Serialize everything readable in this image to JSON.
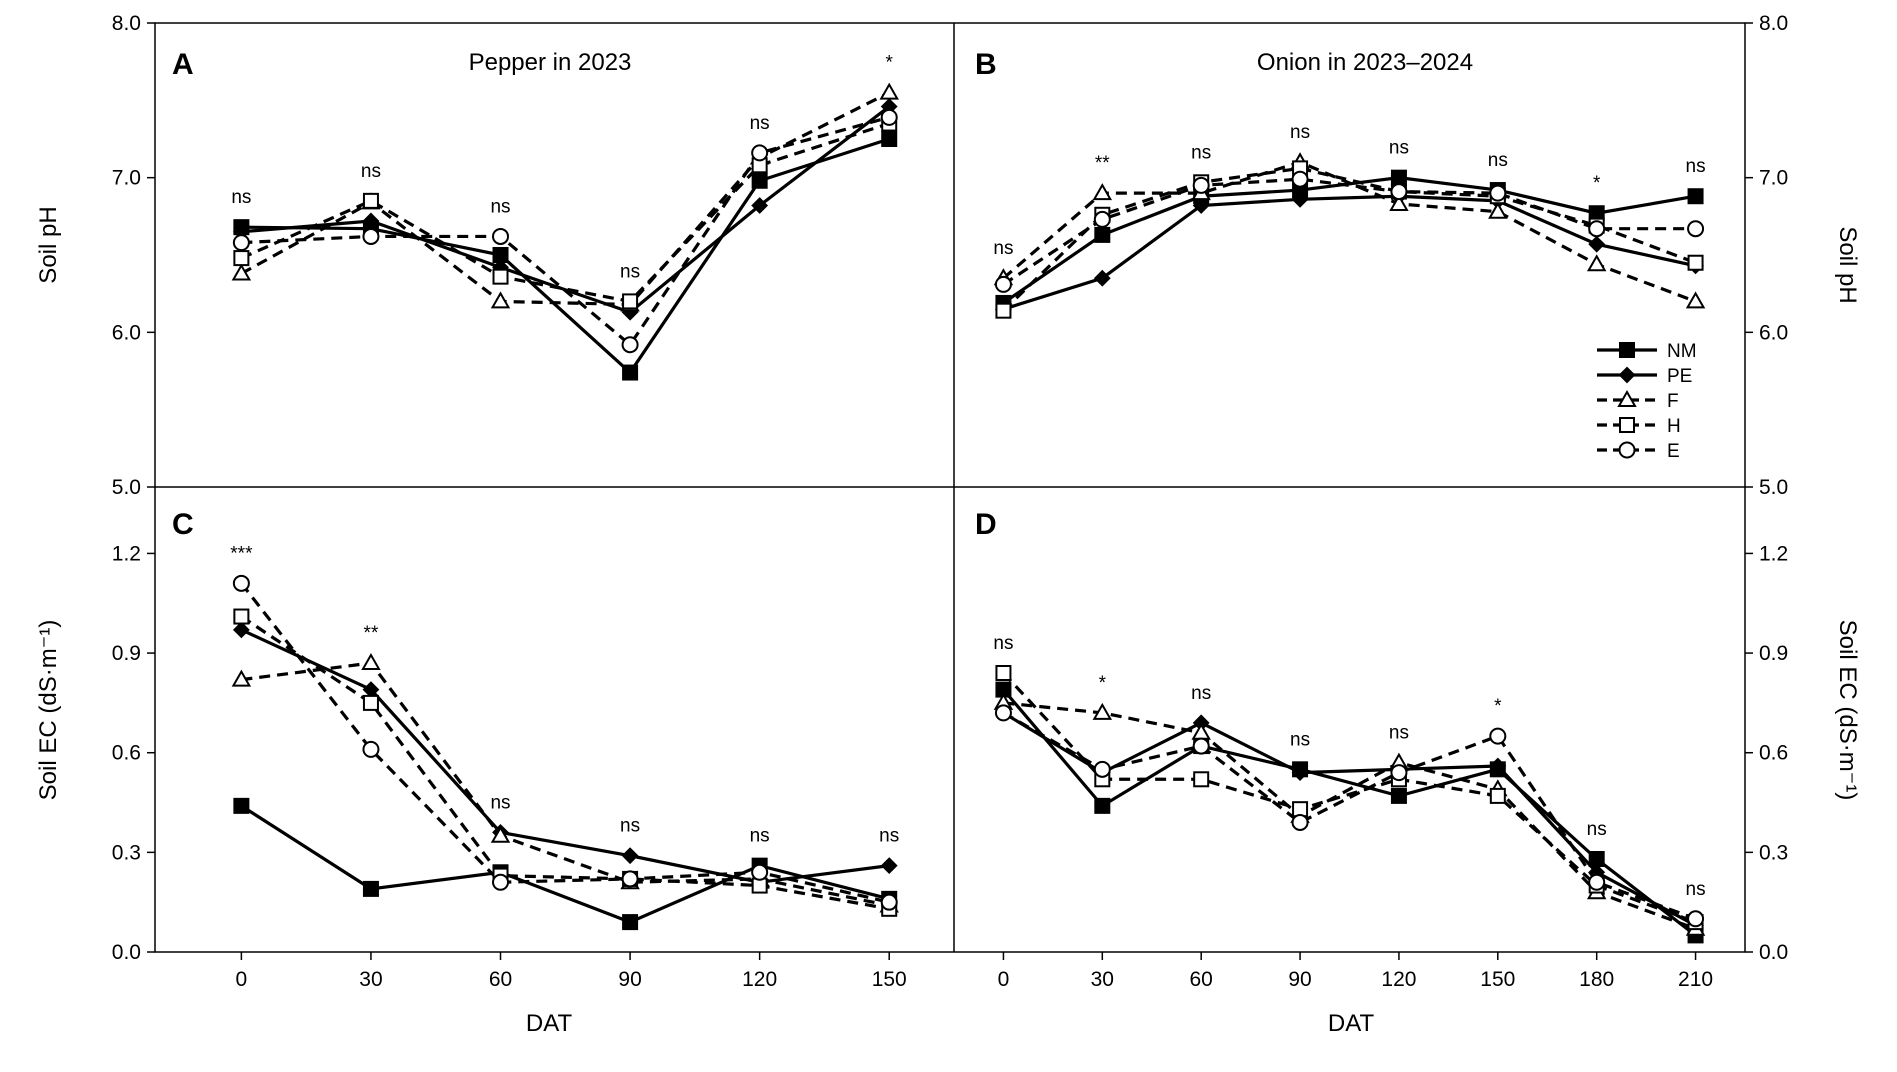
{
  "chart_data": [
    {
      "type": "line",
      "panel_label": "A",
      "title": "Pepper in 2023",
      "ylabel": "Soil pH",
      "ylim": [
        5.0,
        8.0
      ],
      "yticks": [
        "5.0",
        "6.0",
        "7.0",
        "8.0"
      ],
      "x": [
        0,
        30,
        60,
        90,
        120,
        150
      ],
      "series": [
        {
          "name": "NM",
          "values": [
            6.68,
            6.67,
            6.5,
            5.74,
            6.98,
            7.25
          ]
        },
        {
          "name": "PE",
          "values": [
            6.65,
            6.72,
            6.42,
            6.13,
            6.82,
            7.46
          ]
        },
        {
          "name": "F",
          "values": [
            6.38,
            6.84,
            6.2,
            6.18,
            7.13,
            7.55
          ]
        },
        {
          "name": "H",
          "values": [
            6.48,
            6.85,
            6.36,
            6.2,
            7.08,
            7.35
          ]
        },
        {
          "name": "E",
          "values": [
            6.58,
            6.62,
            6.62,
            5.92,
            7.16,
            7.39
          ]
        }
      ],
      "significance": [
        "ns",
        "ns",
        "ns",
        "ns",
        "ns",
        "*"
      ]
    },
    {
      "type": "line",
      "panel_label": "B",
      "title": "Onion in 2023–2024",
      "ylabel": "Soil pH",
      "ylim": [
        5.0,
        8.0
      ],
      "yticks": [
        "5.0",
        "6.0",
        "7.0",
        "8.0"
      ],
      "x": [
        0,
        30,
        60,
        90,
        120,
        150,
        180,
        210
      ],
      "series": [
        {
          "name": "NM",
          "values": [
            6.19,
            6.63,
            6.88,
            6.92,
            7.0,
            6.92,
            6.77,
            6.88
          ]
        },
        {
          "name": "PE",
          "values": [
            6.15,
            6.35,
            6.82,
            6.86,
            6.88,
            6.85,
            6.57,
            6.43
          ]
        },
        {
          "name": "F",
          "values": [
            6.35,
            6.9,
            6.9,
            7.1,
            6.83,
            6.78,
            6.44,
            6.2
          ]
        },
        {
          "name": "H",
          "values": [
            6.14,
            6.76,
            6.97,
            7.06,
            6.91,
            6.88,
            6.69,
            6.45
          ]
        },
        {
          "name": "E",
          "values": [
            6.31,
            6.73,
            6.95,
            6.99,
            6.91,
            6.9,
            6.67,
            6.67
          ]
        }
      ],
      "significance": [
        "ns",
        "**",
        "ns",
        "ns",
        "ns",
        "ns",
        "*",
        "ns"
      ]
    },
    {
      "type": "line",
      "panel_label": "C",
      "title": "",
      "ylabel": "Soil EC (dS·m⁻¹)",
      "ylim": [
        0.0,
        1.4
      ],
      "yticks": [
        "0.0",
        "0.3",
        "0.6",
        "0.9",
        "1.2"
      ],
      "x": [
        0,
        30,
        60,
        90,
        120,
        150
      ],
      "series": [
        {
          "name": "NM",
          "values": [
            0.44,
            0.19,
            0.24,
            0.09,
            0.26,
            0.16
          ]
        },
        {
          "name": "PE",
          "values": [
            0.97,
            0.79,
            0.36,
            0.29,
            0.21,
            0.26
          ]
        },
        {
          "name": "F",
          "values": [
            0.82,
            0.87,
            0.35,
            0.21,
            0.22,
            0.14
          ]
        },
        {
          "name": "H",
          "values": [
            1.01,
            0.75,
            0.23,
            0.22,
            0.2,
            0.13
          ]
        },
        {
          "name": "E",
          "values": [
            1.11,
            0.61,
            0.21,
            0.22,
            0.24,
            0.15
          ]
        }
      ],
      "significance": [
        "***",
        "**",
        "ns",
        "ns",
        "ns",
        "ns"
      ]
    },
    {
      "type": "line",
      "panel_label": "D",
      "title": "",
      "ylabel": "Soil EC (dS·m⁻¹)",
      "ylim": [
        0.0,
        1.4
      ],
      "yticks": [
        "0.0",
        "0.3",
        "0.6",
        "0.9",
        "1.2"
      ],
      "x": [
        0,
        30,
        60,
        90,
        120,
        150,
        180,
        210
      ],
      "series": [
        {
          "name": "NM",
          "values": [
            0.79,
            0.44,
            0.62,
            0.55,
            0.47,
            0.55,
            0.28,
            0.05
          ]
        },
        {
          "name": "PE",
          "values": [
            0.72,
            0.54,
            0.69,
            0.54,
            0.55,
            0.56,
            0.24,
            0.08
          ]
        },
        {
          "name": "F",
          "values": [
            0.75,
            0.72,
            0.66,
            0.41,
            0.57,
            0.49,
            0.18,
            0.07
          ]
        },
        {
          "name": "H",
          "values": [
            0.84,
            0.52,
            0.52,
            0.43,
            0.52,
            0.47,
            0.2,
            0.09
          ]
        },
        {
          "name": "E",
          "values": [
            0.72,
            0.55,
            0.62,
            0.39,
            0.54,
            0.65,
            0.21,
            0.1
          ]
        }
      ],
      "significance": [
        "ns",
        "*",
        "ns",
        "ns",
        "ns",
        "*",
        "ns",
        "ns"
      ]
    }
  ],
  "legend": {
    "items": [
      {
        "name": "NM",
        "marker": "square-filled",
        "line": "solid"
      },
      {
        "name": "PE",
        "marker": "diamond-filled",
        "line": "solid"
      },
      {
        "name": "F",
        "marker": "triangle-open",
        "line": "dashed"
      },
      {
        "name": "H",
        "marker": "square-open",
        "line": "dashed"
      },
      {
        "name": "E",
        "marker": "circle-open",
        "line": "dashed"
      }
    ],
    "placement": "right, inside panel B"
  },
  "x_axis": {
    "label": "DAT",
    "tick_labels_left": [
      "0",
      "30",
      "60",
      "90",
      "120",
      "150"
    ],
    "tick_labels_right": [
      "0",
      "30",
      "60",
      "90",
      "120",
      "150",
      "180",
      "210"
    ]
  },
  "colors": {
    "lines": "#000000",
    "background": "#ffffff"
  }
}
